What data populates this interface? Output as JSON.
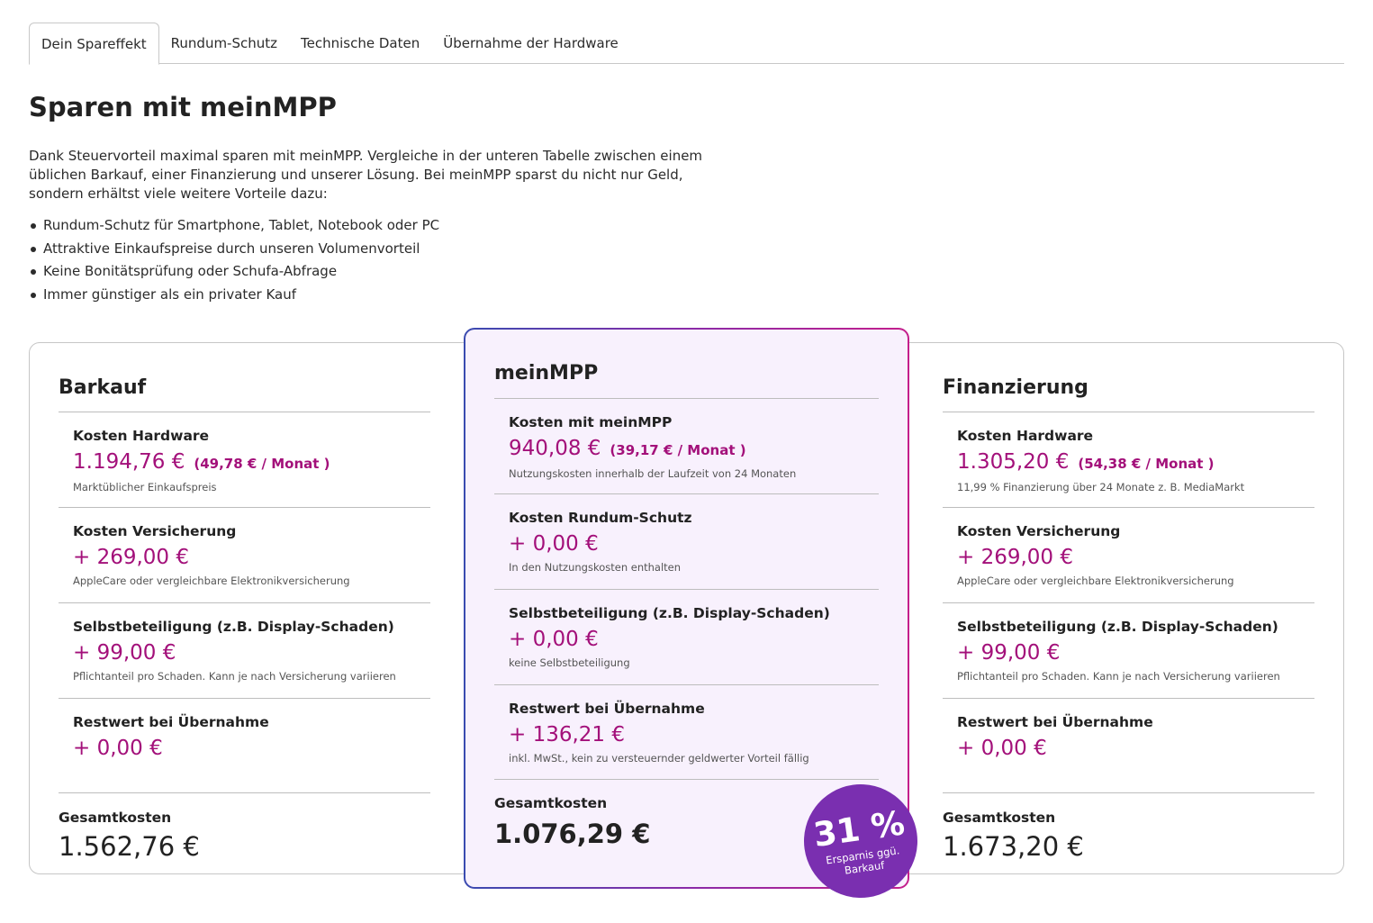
{
  "tabs": [
    {
      "label": "Dein Spareffekt"
    },
    {
      "label": "Rundum-Schutz"
    },
    {
      "label": "Technische Daten"
    },
    {
      "label": "Übernahme der Hardware"
    }
  ],
  "page": {
    "title": "Sparen mit meinMPP",
    "intro": "Dank Steuervorteil maximal sparen mit meinMPP. Vergleiche in der unteren Tabelle zwischen einem üblichen Barkauf, einer Finanzierung und unserer Lösung. Bei meinMPP sparst du nicht nur Geld, sondern erhältst viele weitere Vorteile dazu:",
    "benefits": [
      "Rundum-Schutz für Smartphone, Tablet, Notebook oder PC",
      "Attraktive Einkaufspreise durch unseren Volumenvorteil",
      "Keine Bonitätsprüfung oder Schufa-Abfrage",
      "Immer günstiger als ein privater Kauf"
    ]
  },
  "cards": {
    "barkauf": {
      "title": "Barkauf",
      "rows": [
        {
          "label": "Kosten Hardware",
          "value": "1.194,76 €",
          "monthly": "(49,78 € / Monat )",
          "note": "Marktüblicher Einkaufspreis"
        },
        {
          "label": "Kosten Versicherung",
          "value": "+ 269,00 €",
          "note": "AppleCare oder vergleichbare Elektronikversicherung"
        },
        {
          "label": "Selbstbeteiligung (z.B. Display-Schaden)",
          "value": "+ 99,00 €",
          "note": "Pflichtanteil pro Schaden. Kann je nach Versicherung variieren"
        },
        {
          "label": "Restwert bei Übernahme",
          "value": "+ 0,00 €",
          "note": ""
        }
      ],
      "total_label": "Gesamtkosten",
      "total_value": "1.562,76 €"
    },
    "meinmpp": {
      "title": "meinMPP",
      "rows": [
        {
          "label": "Kosten mit meinMPP",
          "value": "940,08 €",
          "monthly": "(39,17 € / Monat )",
          "note": "Nutzungskosten innerhalb der Laufzeit von 24 Monaten"
        },
        {
          "label": "Kosten Rundum-Schutz",
          "value": "+ 0,00 €",
          "note": "In den Nutzungskosten enthalten"
        },
        {
          "label": "Selbstbeteiligung (z.B. Display-Schaden)",
          "value": "+ 0,00 €",
          "note": "keine Selbstbeteiligung"
        },
        {
          "label": "Restwert bei Übernahme",
          "value": "+ 136,21 €",
          "note": "inkl. MwSt., kein zu versteuernder geldwerter Vorteil fällig"
        }
      ],
      "total_label": "Gesamtkosten",
      "total_value": "1.076,29 €"
    },
    "finanzierung": {
      "title": "Finanzierung",
      "rows": [
        {
          "label": "Kosten Hardware",
          "value": "1.305,20 €",
          "monthly": "(54,38 € / Monat )",
          "note": "11,99 % Finanzierung über 24 Monate z. B. MediaMarkt"
        },
        {
          "label": "Kosten Versicherung",
          "value": "+ 269,00 €",
          "note": "AppleCare oder vergleichbare Elektronikversicherung"
        },
        {
          "label": "Selbstbeteiligung (z.B. Display-Schaden)",
          "value": "+ 99,00 €",
          "note": "Pflichtanteil pro Schaden. Kann je nach Versicherung variieren"
        },
        {
          "label": "Restwert bei Übernahme",
          "value": "+ 0,00 €",
          "note": ""
        }
      ],
      "total_label": "Gesamtkosten",
      "total_value": "1.673,20 €"
    }
  },
  "badge": {
    "percent": "31 %",
    "text": "Ersparnis ggü. Barkauf"
  },
  "colors": {
    "accent_value": "#a3107a",
    "badge": "#7a2fb0",
    "mid_card_bg": "#f8f1fd",
    "gradient_start": "#3a4bb0",
    "gradient_end": "#c41f8c"
  }
}
